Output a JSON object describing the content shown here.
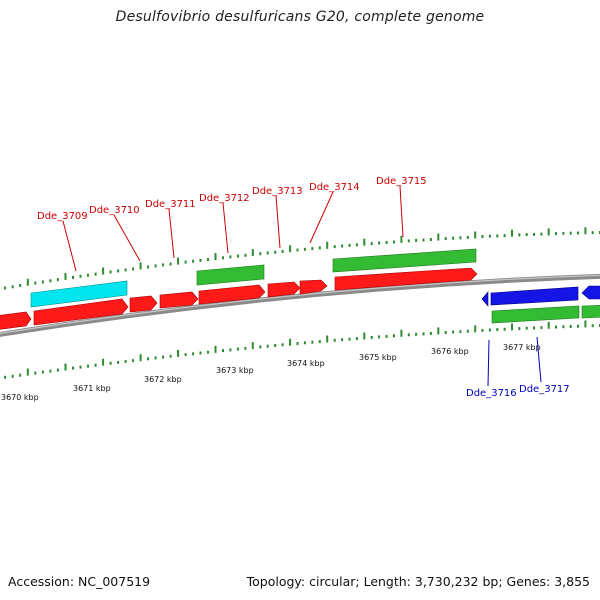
{
  "title": "Desulfovibrio desulfuricans G20, complete genome",
  "footer": {
    "accession": "Accession: NC_007519",
    "topology": "Topology: circular; Length: 3,730,232 bp; Genes: 3,855"
  },
  "colors": {
    "backbone": "#8a8a8a",
    "tick": "#2e8b2e",
    "forward_gene": "#ff1a1a",
    "reverse_gene": "#1515e6",
    "rna": "#00e5ee",
    "cds_green": "#33bb33",
    "label_forward": "#cc0000",
    "label_reverse": "#0000bb"
  },
  "scale": {
    "labels": [
      "3670 kbp",
      "3671 kbp",
      "3672 kbp",
      "3673 kbp",
      "3674 kbp",
      "3675 kbp",
      "3676 kbp",
      "3677 kbp"
    ]
  },
  "genes": [
    {
      "label": "Dde_3709",
      "strand": "forward"
    },
    {
      "label": "Dde_3710",
      "strand": "forward"
    },
    {
      "label": "Dde_3711",
      "strand": "forward"
    },
    {
      "label": "Dde_3712",
      "strand": "forward"
    },
    {
      "label": "Dde_3713",
      "strand": "forward"
    },
    {
      "label": "Dde_3714",
      "strand": "forward"
    },
    {
      "label": "Dde_3715",
      "strand": "forward"
    },
    {
      "label": "Dde_3716",
      "strand": "reverse"
    },
    {
      "label": "Dde_3717",
      "strand": "reverse"
    }
  ]
}
